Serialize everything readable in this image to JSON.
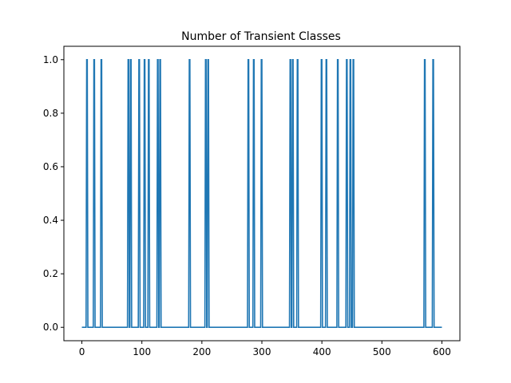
{
  "chart_data": {
    "type": "line",
    "title": "Number of Transient Classes",
    "xlabel": "",
    "ylabel": "",
    "xlim": [
      -30,
      630
    ],
    "ylim": [
      -0.05,
      1.05
    ],
    "xticks": [
      0,
      100,
      200,
      300,
      400,
      500,
      600
    ],
    "yticks": [
      0.0,
      0.2,
      0.4,
      0.6,
      0.8,
      1.0
    ],
    "xtick_labels": [
      "0",
      "100",
      "200",
      "300",
      "400",
      "500",
      "600"
    ],
    "ytick_labels": [
      "0.0",
      "0.2",
      "0.4",
      "0.6",
      "0.8",
      "1.0"
    ],
    "grid": false,
    "legend": "none",
    "x_start": 0,
    "x_end": 600,
    "baseline": 0,
    "spike_value": 1,
    "spike_intervals": [
      [
        8,
        9
      ],
      [
        20,
        21
      ],
      [
        32,
        33
      ],
      [
        77,
        78
      ],
      [
        81,
        82
      ],
      [
        95,
        96
      ],
      [
        104,
        105
      ],
      [
        111,
        112
      ],
      [
        126,
        127
      ],
      [
        130,
        131
      ],
      [
        179,
        180
      ],
      [
        206,
        207
      ],
      [
        210,
        211
      ],
      [
        277,
        278
      ],
      [
        286,
        287
      ],
      [
        299,
        300
      ],
      [
        347,
        348
      ],
      [
        351,
        352
      ],
      [
        359,
        360
      ],
      [
        399,
        400
      ],
      [
        407,
        408
      ],
      [
        426,
        427
      ],
      [
        441,
        442
      ],
      [
        447,
        448
      ],
      [
        452,
        453
      ],
      [
        571,
        572
      ],
      [
        585,
        586
      ]
    ],
    "series_color": "#1f77b4"
  }
}
